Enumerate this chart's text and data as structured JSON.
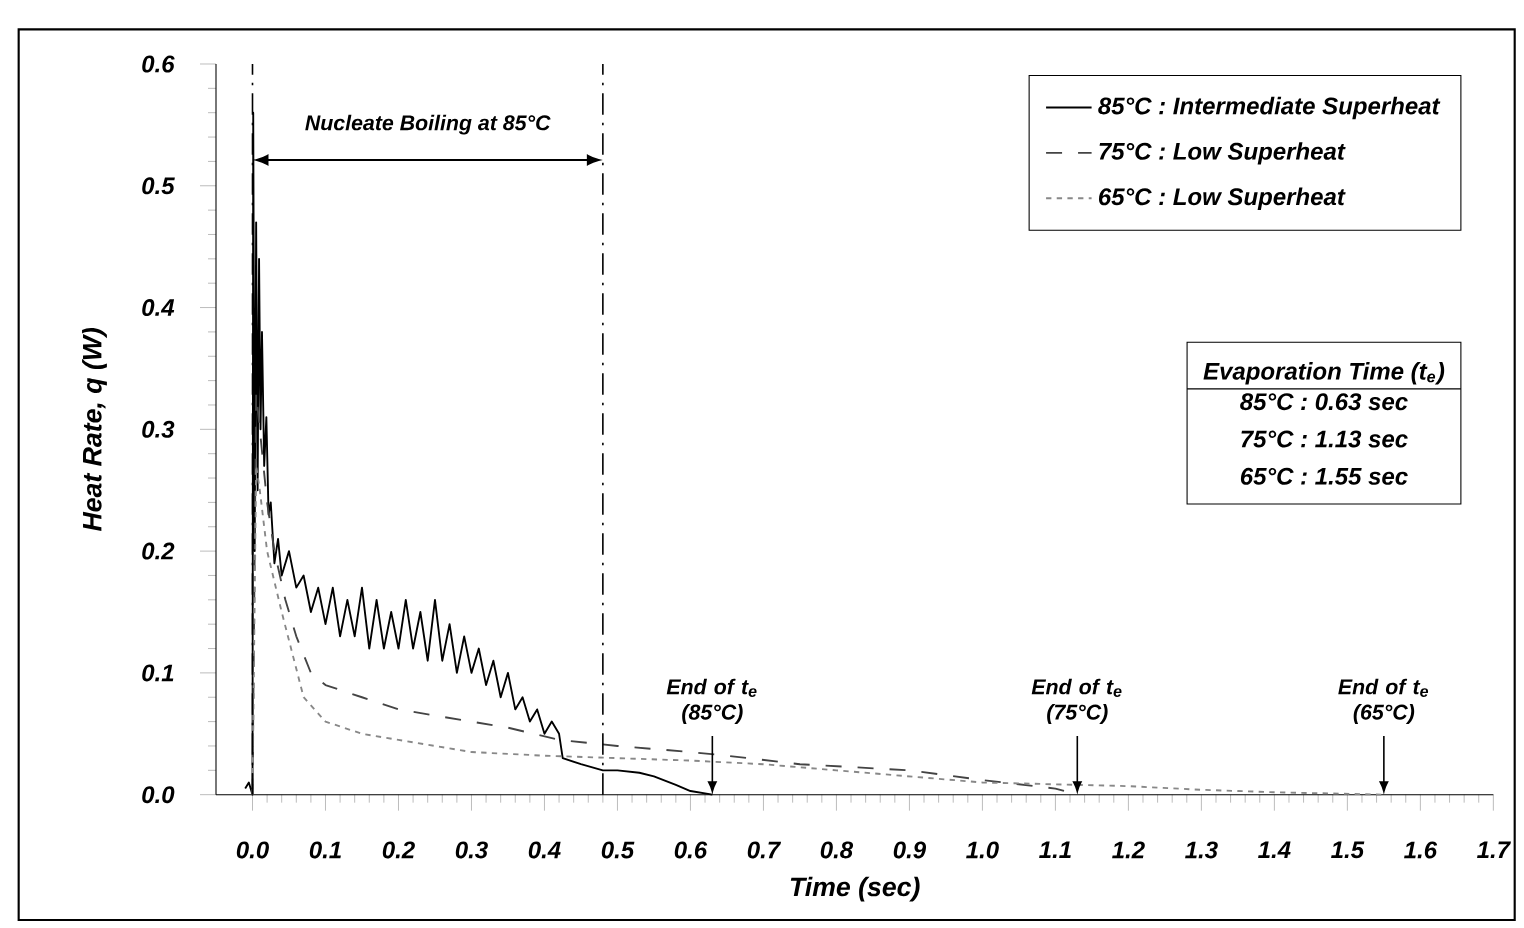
{
  "chart_data": {
    "type": "line",
    "xlabel": "Time (sec)",
    "ylabel": "Heat Rate, q (W)",
    "xlim": [
      -0.05,
      1.7
    ],
    "ylim": [
      0,
      0.6
    ],
    "xticks": [
      {
        "value": 0,
        "label": "0.0"
      },
      {
        "value": 0.1,
        "label": "0.1"
      },
      {
        "value": 0.2,
        "label": "0.2"
      },
      {
        "value": 0.3,
        "label": "0.3"
      },
      {
        "value": 0.4,
        "label": "0.4"
      },
      {
        "value": 0.5,
        "label": "0.5"
      },
      {
        "value": 0.6,
        "label": "0.6"
      },
      {
        "value": 0.7,
        "label": "0.7"
      },
      {
        "value": 0.8,
        "label": "0.8"
      },
      {
        "value": 0.9,
        "label": "0.9"
      },
      {
        "value": 1.0,
        "label": "1.0"
      },
      {
        "value": 1.1,
        "label": "1.1"
      },
      {
        "value": 1.2,
        "label": "1.2"
      },
      {
        "value": 1.3,
        "label": "1.3"
      },
      {
        "value": 1.4,
        "label": "1.4"
      },
      {
        "value": 1.5,
        "label": "1.5"
      },
      {
        "value": 1.6,
        "label": "1.6"
      },
      {
        "value": 1.7,
        "label": "1.7"
      }
    ],
    "yticks": [
      {
        "value": 0,
        "label": "0.0"
      },
      {
        "value": 0.1,
        "label": "0.1"
      },
      {
        "value": 0.2,
        "label": "0.2"
      },
      {
        "value": 0.3,
        "label": "0.3"
      },
      {
        "value": 0.4,
        "label": "0.4"
      },
      {
        "value": 0.5,
        "label": "0.5"
      },
      {
        "value": 0.6,
        "label": "0.6"
      }
    ],
    "grid": false,
    "legend": "top right",
    "marker": "none",
    "series": [
      {
        "name": "85°C : Intermediate Superheat",
        "color": "#000000",
        "line_style": "solid",
        "x": [
          -0.01,
          -0.005,
          0.0,
          0.001,
          0.003,
          0.005,
          0.007,
          0.009,
          0.011,
          0.013,
          0.016,
          0.019,
          0.022,
          0.025,
          0.03,
          0.035,
          0.04,
          0.05,
          0.06,
          0.07,
          0.08,
          0.09,
          0.1,
          0.11,
          0.12,
          0.13,
          0.14,
          0.15,
          0.16,
          0.17,
          0.18,
          0.19,
          0.2,
          0.21,
          0.22,
          0.23,
          0.24,
          0.25,
          0.26,
          0.27,
          0.28,
          0.29,
          0.3,
          0.31,
          0.32,
          0.33,
          0.34,
          0.35,
          0.36,
          0.37,
          0.38,
          0.39,
          0.4,
          0.41,
          0.42,
          0.425,
          0.45,
          0.48,
          0.5,
          0.53,
          0.55,
          0.58,
          0.6,
          0.63
        ],
        "values": [
          0.005,
          0.01,
          0.0,
          0.56,
          0.2,
          0.47,
          0.25,
          0.44,
          0.3,
          0.38,
          0.27,
          0.31,
          0.23,
          0.24,
          0.19,
          0.21,
          0.18,
          0.2,
          0.17,
          0.18,
          0.15,
          0.17,
          0.14,
          0.17,
          0.13,
          0.16,
          0.13,
          0.17,
          0.12,
          0.16,
          0.12,
          0.15,
          0.12,
          0.16,
          0.12,
          0.15,
          0.11,
          0.16,
          0.11,
          0.14,
          0.1,
          0.13,
          0.1,
          0.12,
          0.09,
          0.11,
          0.08,
          0.1,
          0.07,
          0.08,
          0.06,
          0.07,
          0.05,
          0.06,
          0.05,
          0.03,
          0.025,
          0.02,
          0.02,
          0.018,
          0.015,
          0.008,
          0.003,
          0.0
        ]
      },
      {
        "name": "75°C : Low Superheat",
        "color": "#444444",
        "line_style": "dashed",
        "x": [
          0.0,
          0.005,
          0.01,
          0.02,
          0.03,
          0.045,
          0.06,
          0.08,
          0.1,
          0.15,
          0.2,
          0.25,
          0.3,
          0.35,
          0.42,
          0.5,
          0.6,
          0.65,
          0.75,
          0.9,
          1.0,
          1.1,
          1.13
        ],
        "values": [
          0.0,
          0.33,
          0.3,
          0.24,
          0.2,
          0.16,
          0.13,
          0.1,
          0.09,
          0.08,
          0.07,
          0.065,
          0.06,
          0.055,
          0.045,
          0.04,
          0.035,
          0.032,
          0.025,
          0.02,
          0.012,
          0.005,
          0.0
        ]
      },
      {
        "name": "65°C : Low Superheat",
        "color": "#888888",
        "line_style": "dotted",
        "x": [
          0.0,
          0.005,
          0.01,
          0.02,
          0.04,
          0.07,
          0.1,
          0.15,
          0.2,
          0.3,
          0.4,
          0.5,
          0.6,
          0.7,
          0.8,
          0.9,
          1.0,
          1.2,
          1.3,
          1.4,
          1.55
        ],
        "values": [
          0.0,
          0.27,
          0.25,
          0.2,
          0.15,
          0.08,
          0.06,
          0.05,
          0.045,
          0.035,
          0.032,
          0.03,
          0.028,
          0.025,
          0.02,
          0.015,
          0.01,
          0.007,
          0.004,
          0.002,
          0.0
        ]
      }
    ],
    "ref_lines": [
      {
        "axis": "x",
        "value": 0.0,
        "line_style": "dashdot",
        "color": "#000000"
      },
      {
        "axis": "x",
        "value": 0.48,
        "line_style": "dashdot",
        "color": "#000000"
      }
    ],
    "annotations": [
      "Nucleate Boiling at 85°C",
      {
        "text": "End of t$_{e}$ (85°C)",
        "x": 0.63,
        "y": 0.0
      },
      {
        "text": "End of t$_{e}$ (75°C)",
        "x": 1.13,
        "y": 0.0
      },
      {
        "text": "End of t$_{e}$ (65°C)",
        "x": 1.55,
        "y": 0.0
      },
      "Evaporation Time (t$_{e}$)",
      "85°C : 0.63 sec",
      "75°C : 1.13 sec",
      "65°C : 1.55 sec"
    ]
  }
}
